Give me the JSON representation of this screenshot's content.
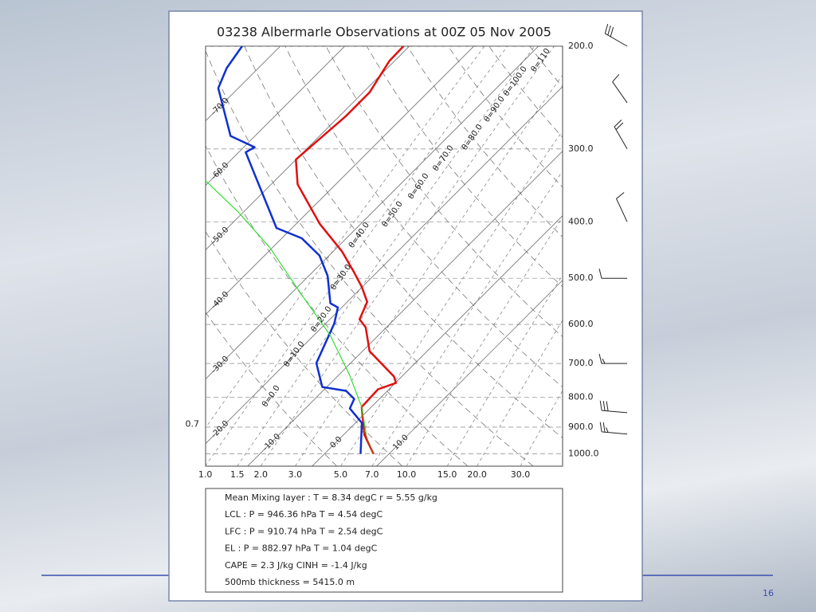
{
  "chart_data": {
    "type": "skewt",
    "title": "03238 Albermarle Observations at 00Z 05 Nov 2005",
    "log_y": true,
    "ylim": [
      1050,
      200
    ],
    "xlim": [
      -16.5,
      38.8
    ],
    "yticks": [
      {
        "value": 1000,
        "label": "1000.0"
      },
      {
        "value": 900,
        "label": "900.0"
      },
      {
        "value": 800,
        "label": "800.0"
      },
      {
        "value": 700,
        "label": "700.0"
      },
      {
        "value": 600,
        "label": "600.0"
      },
      {
        "value": 500,
        "label": "500.0"
      },
      {
        "value": 400,
        "label": "400.0"
      },
      {
        "value": 300,
        "label": "300.0"
      },
      {
        "value": 200,
        "label": "200.0"
      }
    ],
    "xticks": [
      {
        "value": 0.7,
        "label": "0.7"
      },
      {
        "value": 1,
        "label": "1.0"
      },
      {
        "value": 1.5,
        "label": "1.5"
      },
      {
        "value": 2,
        "label": "2.0"
      },
      {
        "value": 3,
        "label": "3.0"
      },
      {
        "value": 5,
        "label": "5.0"
      },
      {
        "value": 7,
        "label": "7.0"
      },
      {
        "value": 10,
        "label": "10.0"
      },
      {
        "value": 15,
        "label": "15.0"
      },
      {
        "value": 20,
        "label": "20.0"
      },
      {
        "value": 30,
        "label": "30.0"
      }
    ],
    "isotherms": [
      {
        "value": -70,
        "label": "-70.0"
      },
      {
        "value": -60,
        "label": "-60.0"
      },
      {
        "value": -50,
        "label": "-50.0"
      },
      {
        "value": -40,
        "label": "-40.0"
      },
      {
        "value": -30,
        "label": "-30.0"
      },
      {
        "value": -20,
        "label": "-20.0"
      },
      {
        "value": -10,
        "label": "-10.0"
      },
      {
        "value": 0,
        "label": "0.0"
      },
      {
        "value": 10,
        "label": "10.0"
      }
    ],
    "adiabats": [
      {
        "value": 0,
        "label": "θ=0.0"
      },
      {
        "value": 10,
        "label": "θ=10.0"
      },
      {
        "value": 20,
        "label": "θ=20.0"
      },
      {
        "value": 30,
        "label": "θ=30.0"
      },
      {
        "value": 40,
        "label": "θ=40.0"
      },
      {
        "value": 50,
        "label": "θ=50.0"
      },
      {
        "value": 60,
        "label": "θ=60.0"
      },
      {
        "value": 70,
        "label": "θ=70.0"
      },
      {
        "value": 80,
        "label": "θ=80.0"
      },
      {
        "value": 90,
        "label": "θ=90.0"
      },
      {
        "value": 100,
        "label": "θ=100.0"
      },
      {
        "value": 110,
        "label": "θ=110"
      }
    ],
    "series": [
      {
        "color": "#e01010",
        "pressure": [
          1000,
          927,
          831,
          775,
          756,
          737,
          667,
          607,
          588,
          549,
          518,
          487,
          450,
          403,
          345,
          313,
          306,
          264,
          240,
          212,
          200
        ],
        "values": [
          7.6,
          3.2,
          -1.5,
          -1.7,
          0.1,
          -1.2,
          -8.9,
          -13.2,
          -15.4,
          -16.9,
          -20.0,
          -23.7,
          -28.6,
          -36.4,
          -45.9,
          -50.0,
          -49.9,
          -49.0,
          -49.0,
          -50.8,
          -50.9
        ]
      },
      {
        "color": "#1030d0",
        "pressure": [
          1000,
          885,
          836,
          805,
          780,
          768,
          699,
          597,
          561,
          552,
          495,
          457,
          427,
          410,
          324,
          304,
          298,
          285,
          236,
          218,
          200
        ],
        "values": [
          5.6,
          1.0,
          -3.1,
          -3.9,
          -6.4,
          -10.7,
          -15.3,
          -18.7,
          -20.6,
          -22.4,
          -27.1,
          -31.5,
          -36.9,
          -42.4,
          -55.4,
          -58.9,
          -58.3,
          -63.8,
          -73.1,
          -74.9,
          -75.9
        ]
      },
      {
        "color": "#33dd33",
        "pressure": [
          927,
          831,
          733,
          626,
          535,
          443,
          385,
          339
        ],
        "values": [
          3.5,
          -1.5,
          -8.3,
          -17.5,
          -28.0,
          -40.4,
          -50.8,
          -61.0
        ]
      },
      {
        "color": "#a06010",
        "pressure": [
          1000,
          946,
          911
        ],
        "values": [
          7.6,
          4.5,
          2.5
        ]
      }
    ],
    "wind": {
      "pressure": [
        925,
        850,
        700,
        500,
        400,
        300,
        250,
        200
      ],
      "direction": [
        275,
        275,
        270,
        270,
        335,
        330,
        325,
        300
      ],
      "speed": [
        25,
        30,
        15,
        10,
        10,
        20,
        10,
        30
      ]
    },
    "info": [
      "Mean Mixing layer : T = 8.34 degC  r = 5.55 g/kg",
      "LCL : P = 946.36 hPa  T = 4.54 degC",
      "LFC : P = 910.74 hPa  T = 2.54 degC",
      "EL : P = 882.97 hPa  T = 1.04 degC",
      "CAPE = 2.3 J/kg  CINH = -1.4 J/kg",
      "500mb thickness = 5415.0 m"
    ]
  },
  "page_number": "16"
}
